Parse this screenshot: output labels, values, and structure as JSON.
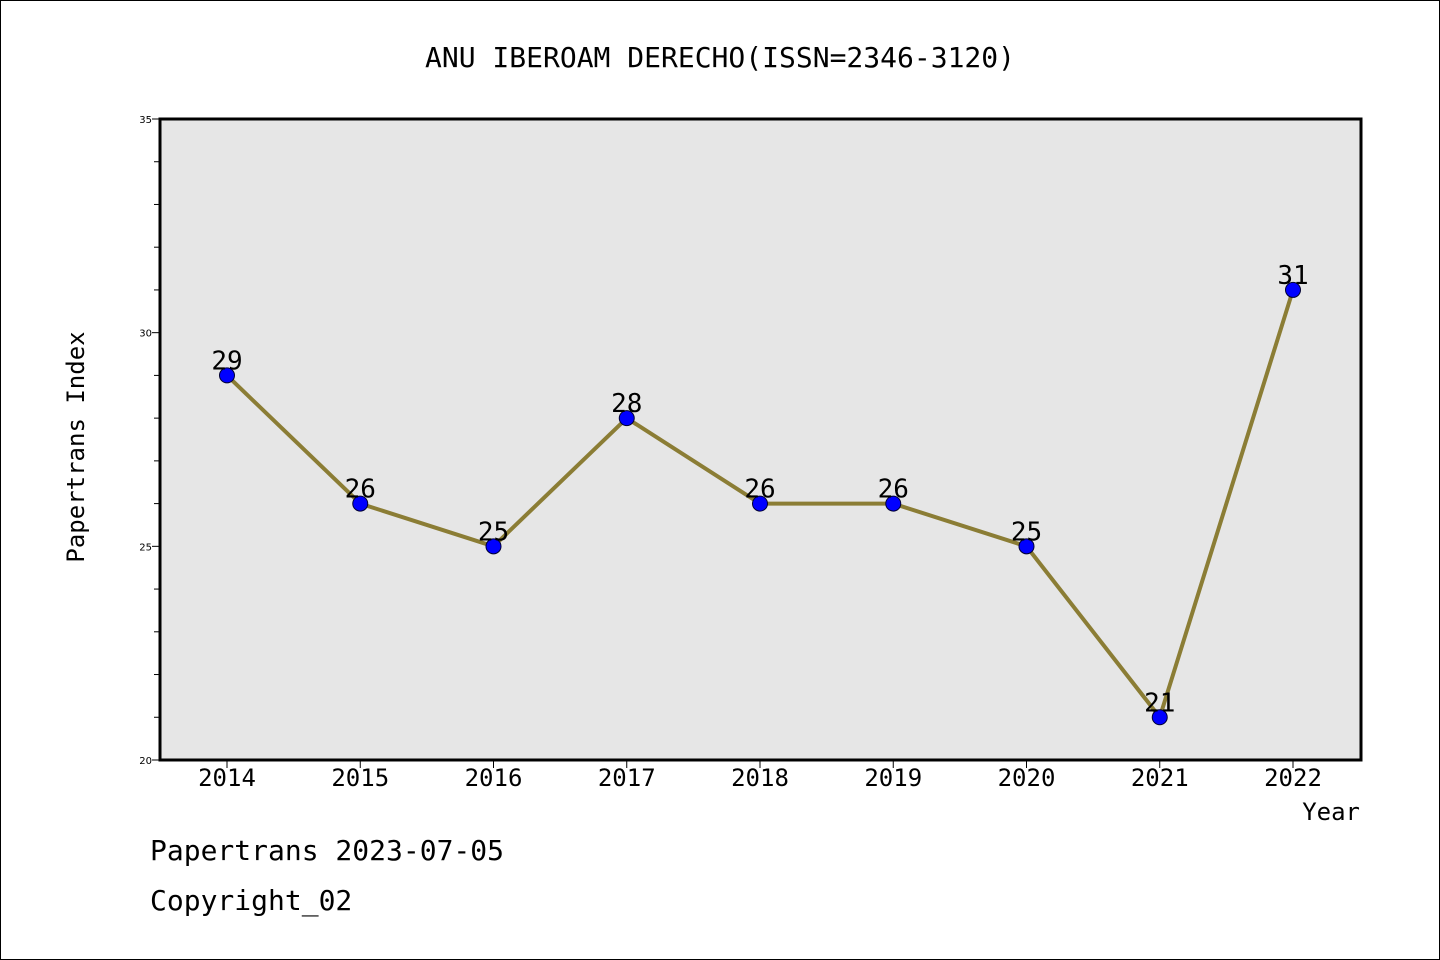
{
  "chart_data": {
    "type": "line",
    "title": "ANU IBEROAM DERECHO(ISSN=2346-3120)",
    "xlabel": "Year",
    "ylabel": "Papertrans Index",
    "categories": [
      "2014",
      "2015",
      "2016",
      "2017",
      "2018",
      "2019",
      "2020",
      "2021",
      "2022"
    ],
    "values": [
      29,
      26,
      25,
      28,
      26,
      26,
      25,
      21,
      31
    ],
    "data_labels": [
      "29",
      "26",
      "25",
      "28",
      "26",
      "26",
      "25",
      "21",
      "31"
    ],
    "ylim": [
      20,
      35
    ],
    "y_major_ticks": [
      20,
      25,
      30,
      35
    ],
    "y_tick_labels": [
      "20",
      "25",
      "30",
      "35"
    ],
    "y_minor_step": 1,
    "grid": false,
    "legend": "none",
    "colors": {
      "line": "#8B7D35",
      "marker": "#0000FF",
      "plot_background": "#E6E6E6",
      "axes": "#000000"
    }
  },
  "footer": {
    "date_text": "Papertrans 2023-07-05",
    "copyright_text": "Copyright_02"
  }
}
